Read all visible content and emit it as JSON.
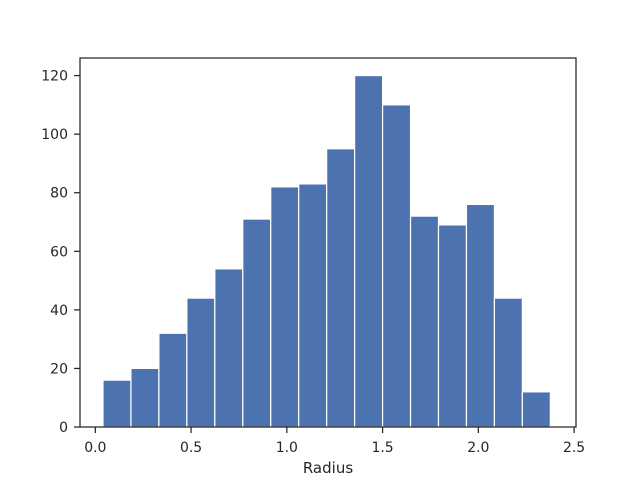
{
  "chart_data": {
    "type": "bar",
    "subtype": "histogram",
    "xlabel": "Radius",
    "ylabel": "",
    "title": "",
    "xlim": [
      -0.08,
      2.51
    ],
    "ylim": [
      0,
      126
    ],
    "xticks": [
      0.0,
      0.5,
      1.0,
      1.5,
      2.0,
      2.5
    ],
    "xtick_labels": [
      "0.0",
      "0.5",
      "1.0",
      "1.5",
      "2.0",
      "2.5"
    ],
    "yticks": [
      0,
      20,
      40,
      60,
      80,
      100,
      120
    ],
    "ytick_labels": [
      "0",
      "20",
      "40",
      "60",
      "80",
      "100",
      "120"
    ],
    "bin_edges": [
      0.04,
      0.186,
      0.332,
      0.478,
      0.624,
      0.77,
      0.916,
      1.062,
      1.208,
      1.354,
      1.5,
      1.646,
      1.792,
      1.938,
      2.084,
      2.23,
      2.376
    ],
    "values": [
      16,
      20,
      32,
      44,
      54,
      71,
      82,
      83,
      95,
      120,
      110,
      72,
      69,
      76,
      44,
      12
    ],
    "bar_color": "#4c72b0",
    "bar_edge_color": "#ffffff",
    "grid": false
  }
}
